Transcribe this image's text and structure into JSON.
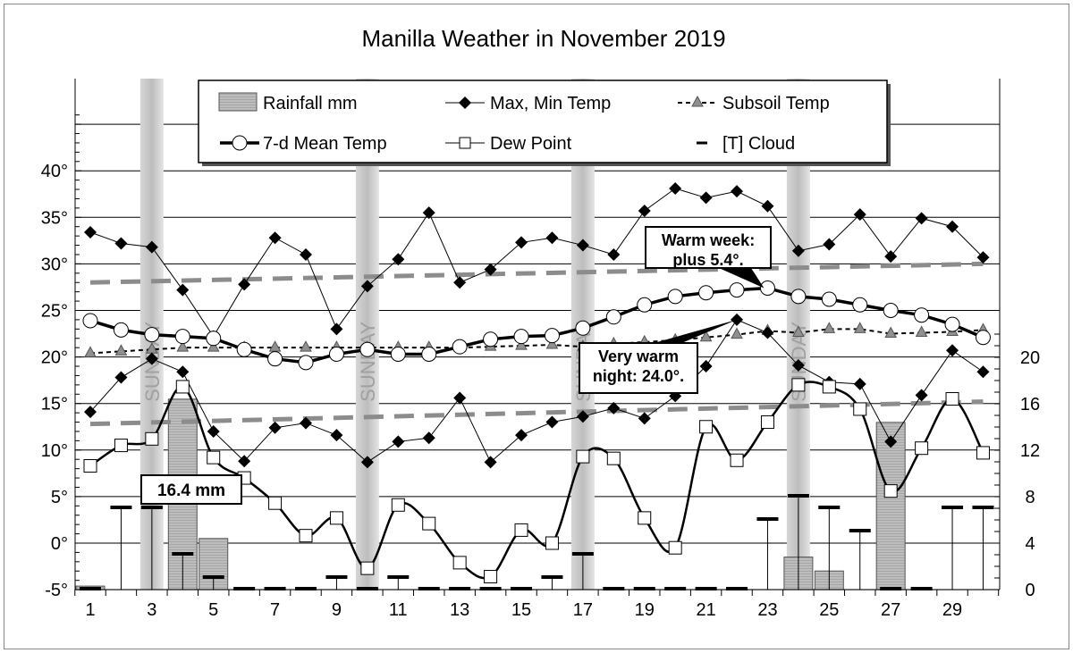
{
  "chart_data": {
    "type": "line",
    "title": "Manilla Weather in November 2019",
    "x": [
      1,
      2,
      3,
      4,
      5,
      6,
      7,
      8,
      9,
      10,
      11,
      12,
      13,
      14,
      15,
      16,
      17,
      18,
      19,
      20,
      21,
      22,
      23,
      24,
      25,
      26,
      27,
      28,
      29,
      30
    ],
    "x_tick_labels": [
      "1",
      "3",
      "5",
      "7",
      "9",
      "11",
      "13",
      "15",
      "17",
      "19",
      "21",
      "23",
      "25",
      "27",
      "29"
    ],
    "y_left": {
      "range": [
        -5,
        45
      ],
      "tick_labels": [
        "-5°",
        "0°",
        "5°",
        "10°",
        "15°",
        "20°",
        "25°",
        "30°",
        "35°",
        "40°"
      ],
      "grid": true
    },
    "y_right": {
      "range": [
        0,
        22
      ],
      "tick_labels": [
        "0",
        "4",
        "8",
        "12",
        "16",
        "20"
      ]
    },
    "sunday_label": "SUNDAY",
    "sundays": [
      3,
      10,
      17,
      24
    ],
    "legend": {
      "rainfall": "Rainfall mm",
      "maxmin": "Max, Min Temp",
      "subsoil": "Subsoil Temp",
      "mean": "7-d Mean Temp",
      "dew": "Dew Point",
      "cloud": "[T] Cloud"
    },
    "series": [
      {
        "name": "Max, Min Temp",
        "key": "max",
        "axis": "left",
        "values": [
          33.4,
          32.2,
          31.8,
          27.2,
          22.2,
          27.8,
          32.8,
          31.0,
          23.0,
          27.6,
          30.5,
          35.5,
          28.0,
          29.4,
          32.3,
          32.8,
          32.0,
          31.0,
          35.7,
          38.1,
          37.1,
          37.8,
          36.2,
          31.4,
          32.1,
          35.3,
          30.8,
          34.9,
          34.0,
          30.7
        ]
      },
      {
        "name": "Max, Min Temp",
        "key": "min",
        "axis": "left",
        "values": [
          14.1,
          17.8,
          19.8,
          18.4,
          12.0,
          8.8,
          12.4,
          12.9,
          11.6,
          8.7,
          10.9,
          11.3,
          15.6,
          8.7,
          11.6,
          13.0,
          13.6,
          14.5,
          13.4,
          15.8,
          19.0,
          24.0,
          22.6,
          19.1,
          17.3,
          17.1,
          10.9,
          15.9,
          20.7,
          18.4
        ]
      },
      {
        "name": "7-d Mean Temp",
        "key": "mean",
        "axis": "left",
        "values": [
          23.9,
          22.9,
          22.4,
          22.2,
          22.0,
          20.8,
          19.8,
          19.4,
          20.3,
          20.8,
          20.3,
          20.3,
          21.1,
          21.9,
          22.2,
          22.3,
          23.1,
          24.3,
          25.6,
          26.5,
          26.9,
          27.2,
          27.4,
          26.5,
          26.2,
          25.6,
          25.0,
          24.5,
          23.5,
          22.1
        ]
      },
      {
        "name": "Subsoil Temp",
        "key": "subsoil",
        "axis": "left",
        "values": [
          20.4,
          20.6,
          20.8,
          21.0,
          21.0,
          21.0,
          21.0,
          21.0,
          21.0,
          21.0,
          21.0,
          21.0,
          21.0,
          21.1,
          21.2,
          21.3,
          21.1,
          21.4,
          21.6,
          21.8,
          22.1,
          22.4,
          22.8,
          22.6,
          23.0,
          23.0,
          22.5,
          22.6,
          22.7,
          22.9
        ]
      },
      {
        "name": "Dew Point",
        "key": "dew",
        "axis": "left",
        "values": [
          8.3,
          10.5,
          11.2,
          16.8,
          9.2,
          7.0,
          4.3,
          0.8,
          2.7,
          -2.7,
          4.1,
          2.1,
          -2.1,
          -3.6,
          1.4,
          0.0,
          9.3,
          9.1,
          2.7,
          -0.5,
          12.5,
          8.9,
          13.0,
          17.0,
          16.8,
          14.4,
          5.6,
          10.2,
          15.5,
          9.7
        ]
      },
      {
        "name": "Rainfall mm",
        "key": "rain",
        "axis": "right",
        "values": [
          0.3,
          0,
          0,
          16.4,
          4.4,
          0,
          0,
          0,
          0,
          0,
          0,
          0,
          0,
          0,
          0,
          0,
          0,
          0,
          0,
          0,
          0,
          0,
          0,
          2.8,
          1.6,
          0,
          14.4,
          0,
          0,
          0
        ]
      },
      {
        "name": "[T] Cloud",
        "key": "cloud",
        "axis": "right",
        "values": [
          0,
          7,
          7,
          3,
          1,
          0,
          0,
          0,
          1,
          0,
          1,
          0,
          0,
          0,
          0,
          1,
          3,
          0,
          0,
          0,
          0,
          0,
          6,
          8,
          7,
          5,
          0,
          0,
          7,
          7
        ]
      }
    ],
    "trendlines": {
      "max": [
        28.0,
        30.0
      ],
      "min": [
        12.8,
        15.2
      ]
    },
    "annotations": [
      {
        "key": "rain",
        "text": [
          "16.4 mm"
        ],
        "day": 4
      },
      {
        "key": "week",
        "text": [
          "Warm week:",
          "plus 5.4°."
        ],
        "day": 23
      },
      {
        "key": "night",
        "text": [
          "Very warm",
          "night: 24.0°."
        ],
        "day": 22
      }
    ],
    "colors": {
      "bar": "#c8c8c8",
      "trend": "#8c8c8c",
      "sunday": "#c8c8c8",
      "line": "#000000",
      "subsoil_marker": "#909090"
    }
  }
}
